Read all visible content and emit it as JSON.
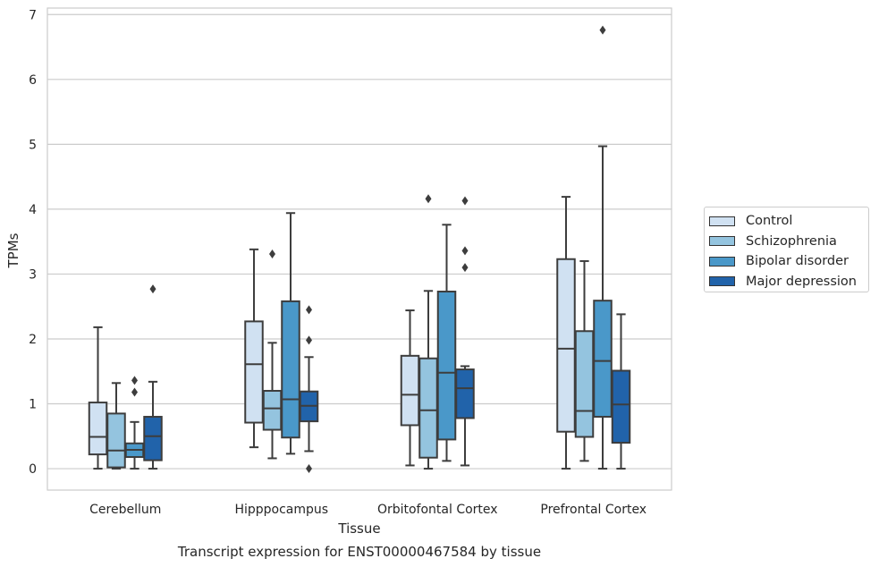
{
  "chart_data": {
    "type": "box",
    "xlabel": "Tissue",
    "ylabel": "TPMs",
    "caption": "Transcript expression for ENST00000467584 by tissue",
    "ylim": [
      -0.33,
      7.1
    ],
    "yticks": [
      0,
      1,
      2,
      3,
      4,
      5,
      6,
      7
    ],
    "grid": "horizontal",
    "legend_position": "right",
    "categories": [
      "Cerebellum",
      "Hipppocampus",
      "Orbitofontal Cortex",
      "Prefrontal Cortex"
    ],
    "series": [
      {
        "name": "Control",
        "color": "#d0e1f2",
        "boxes": [
          {
            "whisker_low": 0.0,
            "q1": 0.22,
            "median": 0.49,
            "q3": 1.02,
            "whisker_high": 2.18,
            "outliers": []
          },
          {
            "whisker_low": 0.33,
            "q1": 0.71,
            "median": 1.61,
            "q3": 2.27,
            "whisker_high": 3.38,
            "outliers": []
          },
          {
            "whisker_low": 0.05,
            "q1": 0.67,
            "median": 1.14,
            "q3": 1.74,
            "whisker_high": 2.44,
            "outliers": []
          },
          {
            "whisker_low": 0.0,
            "q1": 0.57,
            "median": 1.85,
            "q3": 3.23,
            "whisker_high": 4.19,
            "outliers": []
          }
        ]
      },
      {
        "name": "Schizophrenia",
        "color": "#94c4df",
        "boxes": [
          {
            "whisker_low": 0.0,
            "q1": 0.02,
            "median": 0.28,
            "q3": 0.85,
            "whisker_high": 1.32,
            "outliers": []
          },
          {
            "whisker_low": 0.16,
            "q1": 0.6,
            "median": 0.93,
            "q3": 1.2,
            "whisker_high": 1.94,
            "outliers": [
              3.31
            ]
          },
          {
            "whisker_low": 0.0,
            "q1": 0.17,
            "median": 0.9,
            "q3": 1.7,
            "whisker_high": 2.74,
            "outliers": [
              4.16
            ]
          },
          {
            "whisker_low": 0.12,
            "q1": 0.49,
            "median": 0.89,
            "q3": 2.12,
            "whisker_high": 3.2,
            "outliers": []
          }
        ]
      },
      {
        "name": "Bipolar disorder",
        "color": "#4a98c9",
        "boxes": [
          {
            "whisker_low": 0.0,
            "q1": 0.18,
            "median": 0.29,
            "q3": 0.39,
            "whisker_high": 0.72,
            "outliers": [
              1.18,
              1.36
            ]
          },
          {
            "whisker_low": 0.23,
            "q1": 0.48,
            "median": 1.07,
            "q3": 2.58,
            "whisker_high": 3.94,
            "outliers": []
          },
          {
            "whisker_low": 0.12,
            "q1": 0.45,
            "median": 1.48,
            "q3": 2.73,
            "whisker_high": 3.76,
            "outliers": []
          },
          {
            "whisker_low": 0.0,
            "q1": 0.8,
            "median": 1.66,
            "q3": 2.59,
            "whisker_high": 4.97,
            "outliers": [
              6.76
            ]
          }
        ]
      },
      {
        "name": "Major depression",
        "color": "#2163aa",
        "boxes": [
          {
            "whisker_low": 0.0,
            "q1": 0.13,
            "median": 0.5,
            "q3": 0.8,
            "whisker_high": 1.34,
            "outliers": [
              2.77
            ]
          },
          {
            "whisker_low": 0.27,
            "q1": 0.73,
            "median": 0.97,
            "q3": 1.19,
            "whisker_high": 1.72,
            "outliers": [
              0.0,
              1.98,
              2.45
            ]
          },
          {
            "whisker_low": 0.05,
            "q1": 0.78,
            "median": 1.24,
            "q3": 1.53,
            "whisker_high": 1.58,
            "outliers": [
              3.1,
              3.36,
              4.13
            ]
          },
          {
            "whisker_low": 0.0,
            "q1": 0.4,
            "median": 0.99,
            "q3": 1.51,
            "whisker_high": 2.38,
            "outliers": []
          }
        ]
      }
    ]
  }
}
